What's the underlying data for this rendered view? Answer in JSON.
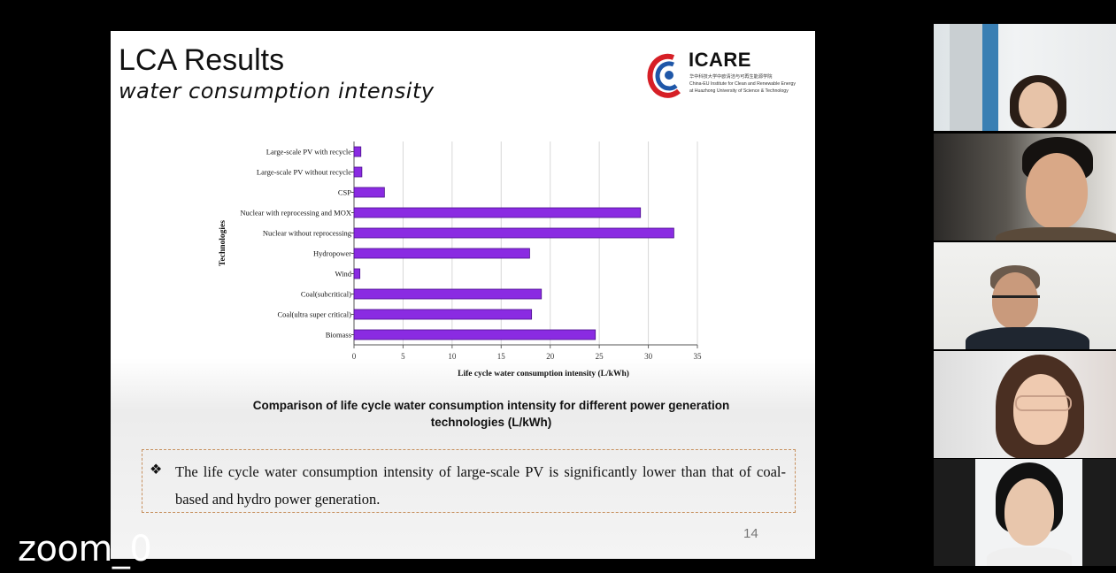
{
  "slide": {
    "title": "LCA Results",
    "subtitle": "water consumption intensity",
    "logo": {
      "name": "ICARE",
      "subtitle_lines": [
        "华中科技大学中欧清洁与可再生能源学院",
        "China-EU Institute for Clean and Renewable Energy",
        "at Huazhong University of Science & Technology"
      ]
    },
    "caption": "Comparison of life cycle water consumption intensity for different power generation technologies (L/kWh)",
    "bullet_symbol": "❖",
    "note": "The life cycle water consumption intensity of large-scale PV is significantly lower than that of coal-based and hydro power generation.",
    "page_number": "14"
  },
  "chart_data": {
    "type": "bar",
    "orientation": "horizontal",
    "categories": [
      "Large-scale PV with recycle",
      "Large-scale PV without recycle",
      "CSP",
      "Nuclear with reprocessing and MOX",
      "Nuclear without reprocessing",
      "Hydropower",
      "Wind",
      "Coal(subcritical)",
      "Coal(ultra super critical)",
      "Biomass"
    ],
    "values": [
      0.7,
      0.8,
      3.1,
      29.2,
      32.6,
      17.9,
      0.6,
      19.1,
      18.1,
      24.6
    ],
    "xlabel": "Life cycle water consumption intensity (L/kWh)",
    "ylabel": "Technologies",
    "xlim": [
      0,
      35
    ],
    "xticks": [
      "0",
      "5",
      "10",
      "15",
      "20",
      "25",
      "30",
      "35"
    ],
    "grid": true,
    "bar_color": "#8a2be2",
    "bar_edge_color": "#4b0f8c"
  },
  "meeting": {
    "self_label": "zoom_0",
    "participants": [
      {
        "id": "p1"
      },
      {
        "id": "p2"
      },
      {
        "id": "p3"
      },
      {
        "id": "p4"
      },
      {
        "id": "p5"
      }
    ]
  }
}
